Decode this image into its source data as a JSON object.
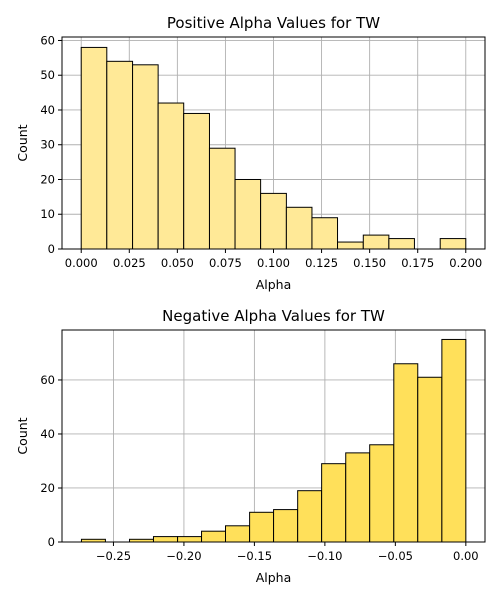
{
  "chart_data": [
    {
      "type": "bar",
      "title": "Positive Alpha Values for TW",
      "xlabel": "Alpha",
      "ylabel": "Count",
      "bar_color": "#ffe997",
      "edge_color": "#000000",
      "grid": true,
      "xlim": [
        -0.01,
        0.21
      ],
      "ylim": [
        0,
        61
      ],
      "xticks": [
        0.0,
        0.025,
        0.05,
        0.075,
        0.1,
        0.125,
        0.15,
        0.175,
        0.2
      ],
      "xtick_labels": [
        "0.000",
        "0.025",
        "0.050",
        "0.075",
        "0.100",
        "0.125",
        "0.150",
        "0.175",
        "0.200"
      ],
      "yticks": [
        0,
        10,
        20,
        30,
        40,
        50,
        60
      ],
      "ytick_labels": [
        "0",
        "10",
        "20",
        "30",
        "40",
        "50",
        "60"
      ],
      "bins": [
        {
          "x0": 0.0,
          "x1": 0.0133,
          "count": 58
        },
        {
          "x0": 0.0133,
          "x1": 0.0267,
          "count": 54
        },
        {
          "x0": 0.0267,
          "x1": 0.04,
          "count": 53
        },
        {
          "x0": 0.04,
          "x1": 0.0533,
          "count": 42
        },
        {
          "x0": 0.0533,
          "x1": 0.0667,
          "count": 39
        },
        {
          "x0": 0.0667,
          "x1": 0.08,
          "count": 29
        },
        {
          "x0": 0.08,
          "x1": 0.0933,
          "count": 20
        },
        {
          "x0": 0.0933,
          "x1": 0.1067,
          "count": 16
        },
        {
          "x0": 0.1067,
          "x1": 0.12,
          "count": 12
        },
        {
          "x0": 0.12,
          "x1": 0.1333,
          "count": 9
        },
        {
          "x0": 0.1333,
          "x1": 0.1467,
          "count": 2
        },
        {
          "x0": 0.1467,
          "x1": 0.16,
          "count": 4
        },
        {
          "x0": 0.16,
          "x1": 0.1733,
          "count": 3
        },
        {
          "x0": 0.1733,
          "x1": 0.1867,
          "count": 0
        },
        {
          "x0": 0.1867,
          "x1": 0.2,
          "count": 3
        }
      ]
    },
    {
      "type": "bar",
      "title": "Negative Alpha Values for TW",
      "xlabel": "Alpha",
      "ylabel": "Count",
      "bar_color": "#ffe05a",
      "edge_color": "#000000",
      "grid": true,
      "xlim": [
        -0.2865,
        0.0136
      ],
      "ylim": [
        0,
        78.5
      ],
      "xticks": [
        -0.25,
        -0.2,
        -0.15,
        -0.1,
        -0.05,
        0.0
      ],
      "xtick_labels": [
        "−0.25",
        "−0.20",
        "−0.15",
        "−0.10",
        "−0.05",
        "0.00"
      ],
      "yticks": [
        0,
        20,
        40,
        60
      ],
      "ytick_labels": [
        "0",
        "20",
        "40",
        "60"
      ],
      "bins": [
        {
          "x0": -0.2727,
          "x1": -0.2557,
          "count": 1
        },
        {
          "x0": -0.2557,
          "x1": -0.2386,
          "count": 0
        },
        {
          "x0": -0.2386,
          "x1": -0.2216,
          "count": 1
        },
        {
          "x0": -0.2216,
          "x1": -0.2045,
          "count": 2
        },
        {
          "x0": -0.2045,
          "x1": -0.1875,
          "count": 2
        },
        {
          "x0": -0.1875,
          "x1": -0.1705,
          "count": 4
        },
        {
          "x0": -0.1705,
          "x1": -0.1534,
          "count": 6
        },
        {
          "x0": -0.1534,
          "x1": -0.1364,
          "count": 11
        },
        {
          "x0": -0.1364,
          "x1": -0.1193,
          "count": 12
        },
        {
          "x0": -0.1193,
          "x1": -0.1023,
          "count": 19
        },
        {
          "x0": -0.1023,
          "x1": -0.0852,
          "count": 29
        },
        {
          "x0": -0.0852,
          "x1": -0.0682,
          "count": 33
        },
        {
          "x0": -0.0682,
          "x1": -0.0511,
          "count": 36
        },
        {
          "x0": -0.0511,
          "x1": -0.0341,
          "count": 66
        },
        {
          "x0": -0.0341,
          "x1": -0.017,
          "count": 61
        },
        {
          "x0": -0.017,
          "x1": 0.0,
          "count": 75
        }
      ]
    }
  ]
}
